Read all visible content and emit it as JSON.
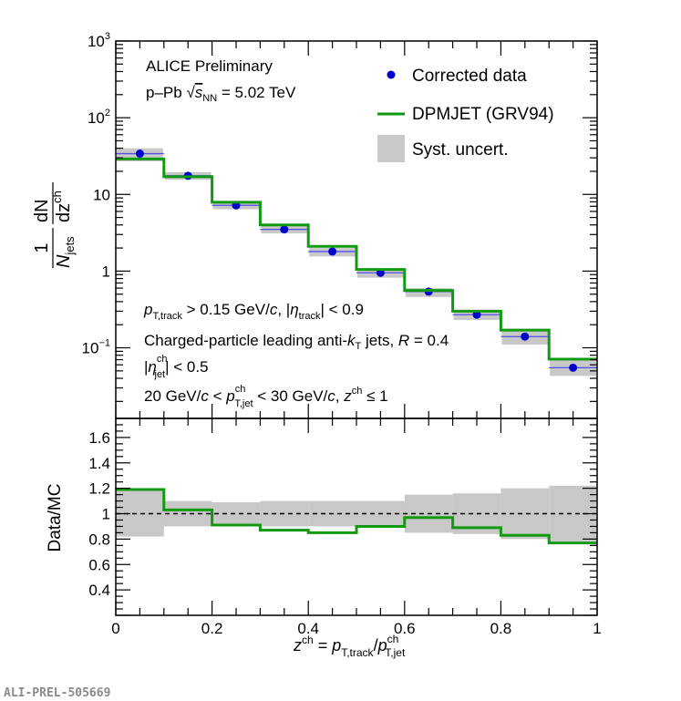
{
  "chart_data": [
    {
      "type": "line",
      "panel": "top",
      "y_scale": "log",
      "ylim": [
        0.012,
        1000
      ],
      "xlim": [
        0,
        1
      ],
      "y_ticks": [
        {
          "value": 1000,
          "base": "10",
          "exp": "3"
        },
        {
          "value": 100,
          "base": "10",
          "exp": "2"
        },
        {
          "value": 10,
          "base": "10",
          "exp": ""
        },
        {
          "value": 1,
          "base": "1",
          "exp": ""
        },
        {
          "value": 0.1,
          "base": "10",
          "exp": "−1"
        }
      ],
      "ylabel": {
        "frac_num": "1",
        "N": "N",
        "jets": "jets",
        "dN": "dN",
        "dz": "dz",
        "ch": "ch"
      },
      "x_bin_edges": [
        0,
        0.1,
        0.2,
        0.3,
        0.4,
        0.5,
        0.6,
        0.7,
        0.8,
        0.9,
        1.0
      ],
      "series": [
        {
          "name": "Corrected data",
          "kind": "points",
          "color": "#0000cc",
          "x": [
            0.05,
            0.15,
            0.25,
            0.35,
            0.45,
            0.55,
            0.65,
            0.75,
            0.85,
            0.95
          ],
          "y": [
            34,
            17.5,
            7.2,
            3.5,
            1.8,
            0.95,
            0.54,
            0.27,
            0.14,
            0.055
          ],
          "syst_low": [
            27,
            15.5,
            6.4,
            3.1,
            1.55,
            0.82,
            0.46,
            0.23,
            0.11,
            0.043
          ],
          "syst_high": [
            40,
            19.5,
            8.0,
            3.9,
            2.0,
            1.05,
            0.6,
            0.31,
            0.17,
            0.068
          ]
        },
        {
          "name": "DPMJET (GRV94)",
          "kind": "step",
          "color": "#119911",
          "values": [
            29,
            17,
            7.9,
            4.0,
            2.1,
            1.05,
            0.56,
            0.3,
            0.17,
            0.071
          ]
        }
      ],
      "legend": {
        "position": "top-right",
        "entries": [
          {
            "label": "Corrected data",
            "style": "marker"
          },
          {
            "label": "DPMJET (GRV94)",
            "style": "line"
          },
          {
            "label": "Syst. uncert.",
            "style": "box"
          }
        ]
      },
      "annotations": {
        "title": "ALICE Preliminary",
        "system": {
          "pre": "p–Pb ",
          "sqrt": "√",
          "s": "s",
          "nn": "NN",
          "post": " = 5.02 TeV"
        },
        "cut1": {
          "p": "p",
          "sub1": "T,track",
          "mid": " > 0.15 GeV/",
          "c": "c",
          "sep": ", |",
          "eta": "η",
          "sub2": "track",
          "post": "| < 0.9"
        },
        "cut2": {
          "pre": "Charged-particle leading anti-",
          "k": "k",
          "sub": "T",
          "mid": " jets, ",
          "R": "R",
          "post": " = 0.4"
        },
        "cut3": {
          "pre": "|",
          "eta": "η",
          "sup": "ch",
          "sub": "jet",
          "post": "| < 0.5"
        },
        "cut4": {
          "a": "20 GeV/",
          "c1": "c",
          "b": " < ",
          "p": "p",
          "sup": "ch",
          "sub": "T,jet",
          "d": " < 30 GeV/",
          "c2": "c",
          "e": ", ",
          "z": "z",
          "zsup": "ch",
          "f": " ≤ 1"
        }
      }
    },
    {
      "type": "line",
      "panel": "bottom",
      "ylabel": "Data/MC",
      "ylim": [
        0.2,
        1.75
      ],
      "xlim": [
        0,
        1
      ],
      "y_ticks": [
        "0.4",
        "0.6",
        "0.8",
        "1",
        "1.2",
        "1.4",
        "1.6"
      ],
      "x_ticks": [
        "0",
        "0.2",
        "0.4",
        "0.6",
        "0.8",
        "1"
      ],
      "reference_line": 1,
      "x_bin_edges": [
        0,
        0.1,
        0.2,
        0.3,
        0.4,
        0.5,
        0.6,
        0.7,
        0.8,
        0.9,
        1.0
      ],
      "series": [
        {
          "name": "Data/MC",
          "kind": "step",
          "color": "#119911",
          "values": [
            1.19,
            1.03,
            0.91,
            0.87,
            0.85,
            0.9,
            0.97,
            0.89,
            0.83,
            0.77
          ]
        }
      ],
      "syst_band": {
        "low": [
          0.82,
          0.9,
          0.91,
          0.9,
          0.9,
          0.9,
          0.85,
          0.84,
          0.8,
          0.78
        ],
        "high": [
          1.19,
          1.1,
          1.09,
          1.1,
          1.1,
          1.1,
          1.15,
          1.16,
          1.2,
          1.22
        ]
      },
      "xlabel": {
        "z": "z",
        "zsup": "ch",
        "eq": " = ",
        "p1": "p",
        "sub1": "T,track",
        "slash": "/",
        "p2": "p",
        "sup2": "ch",
        "sub2": "T,jet"
      }
    }
  ],
  "footer": {
    "id": "ALI-PREL-505669"
  },
  "colors": {
    "band": "#c8c8c8",
    "data": "#0000cc",
    "mc": "#119911",
    "errbar": "#5050ee"
  }
}
